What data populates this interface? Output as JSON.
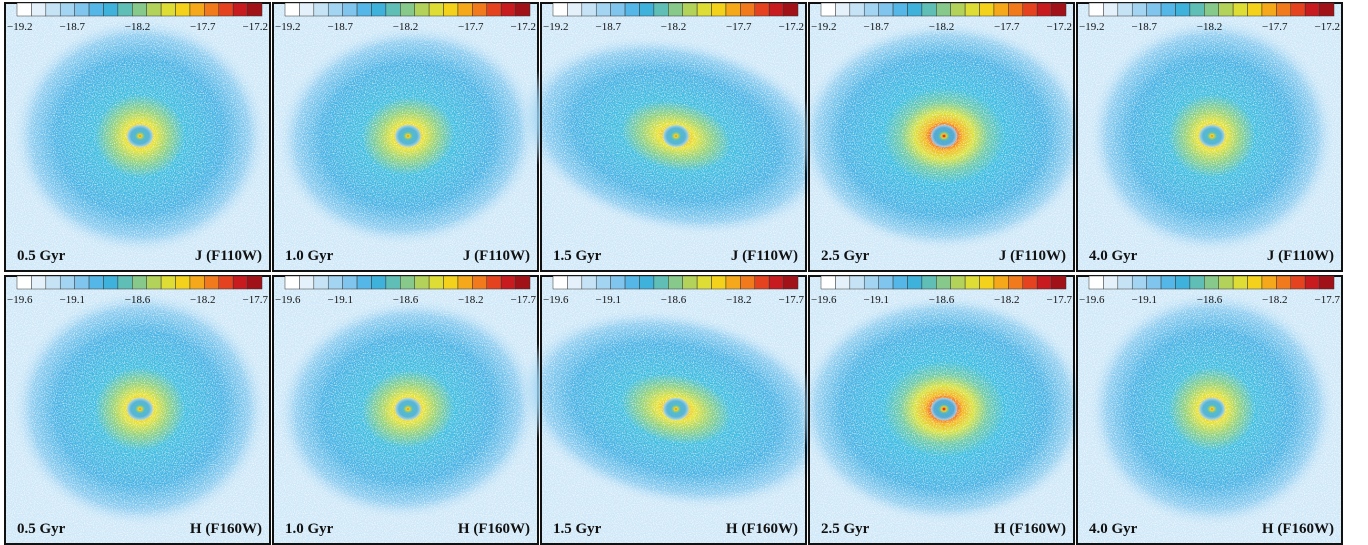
{
  "ages": [
    "0.5 Gyr",
    "1.0 Gyr",
    "1.5 Gyr",
    "2.5 Gyr",
    "4.0 Gyr"
  ],
  "rows": [
    {
      "band": "J (F110W)",
      "colorbar_ticks": [
        "−19.2",
        "−18.7",
        "−18.2",
        "−17.7",
        "−17.2"
      ]
    },
    {
      "band": "H (F160W)",
      "colorbar_ticks": [
        "−19.6",
        "−19.1",
        "−18.6",
        "−18.2",
        "−17.7"
      ]
    }
  ]
}
